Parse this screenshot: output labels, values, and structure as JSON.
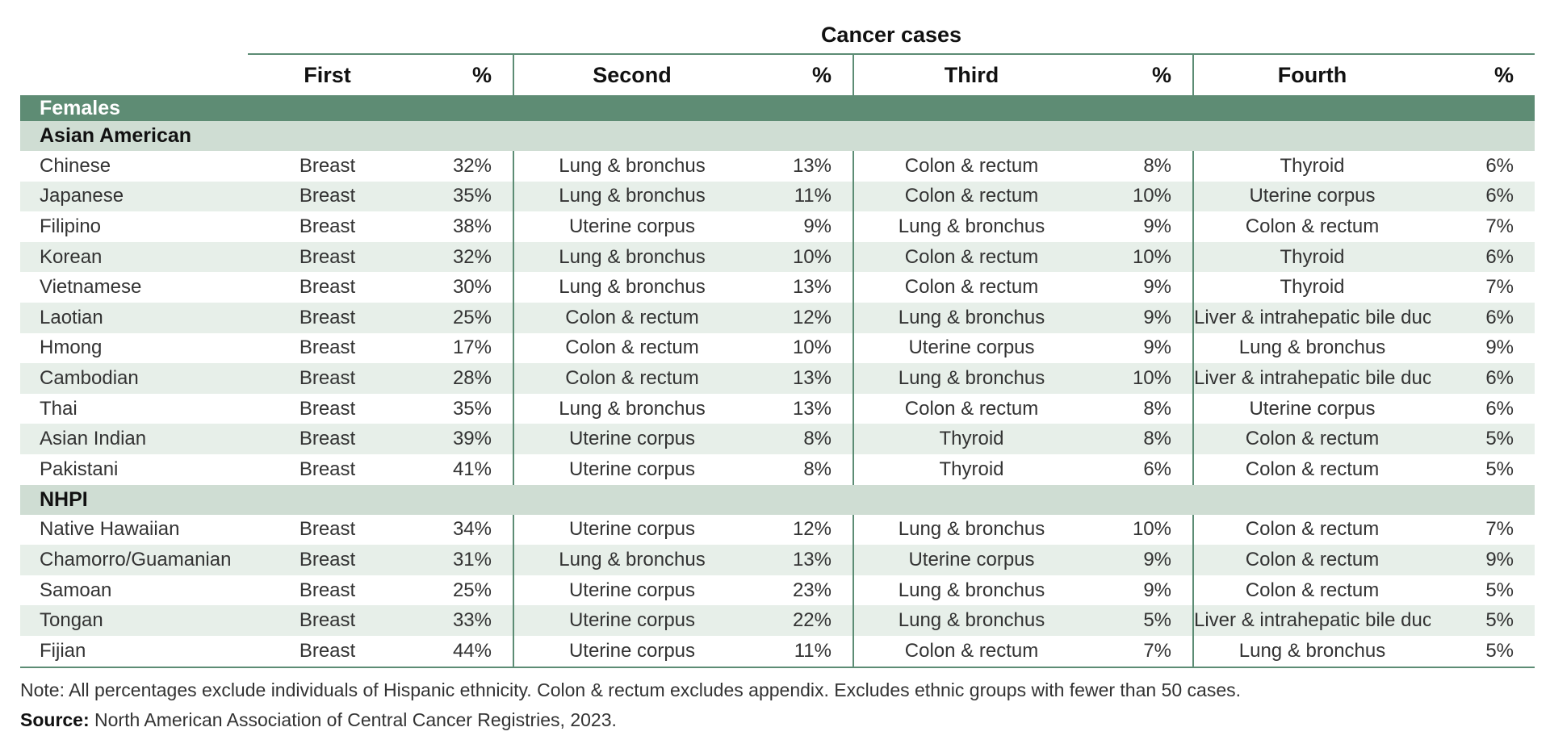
{
  "super_header": "Cancer cases",
  "columns": [
    "First",
    "%",
    "Second",
    "%",
    "Third",
    "%",
    "Fourth",
    "%"
  ],
  "section": "Females",
  "groups": [
    {
      "name": "Asian American",
      "rows": [
        {
          "ethnicity": "Chinese",
          "c1": "Breast",
          "p1": "32%",
          "c2": "Lung & bronchus",
          "p2": "13%",
          "c3": "Colon & rectum",
          "p3": "8%",
          "c4": "Thyroid",
          "p4": "6%"
        },
        {
          "ethnicity": "Japanese",
          "c1": "Breast",
          "p1": "35%",
          "c2": "Lung & bronchus",
          "p2": "11%",
          "c3": "Colon & rectum",
          "p3": "10%",
          "c4": "Uterine corpus",
          "p4": "6%"
        },
        {
          "ethnicity": "Filipino",
          "c1": "Breast",
          "p1": "38%",
          "c2": "Uterine corpus",
          "p2": "9%",
          "c3": "Lung & bronchus",
          "p3": "9%",
          "c4": "Colon & rectum",
          "p4": "7%"
        },
        {
          "ethnicity": "Korean",
          "c1": "Breast",
          "p1": "32%",
          "c2": "Lung & bronchus",
          "p2": "10%",
          "c3": "Colon & rectum",
          "p3": "10%",
          "c4": "Thyroid",
          "p4": "6%"
        },
        {
          "ethnicity": "Vietnamese",
          "c1": "Breast",
          "p1": "30%",
          "c2": "Lung & bronchus",
          "p2": "13%",
          "c3": "Colon & rectum",
          "p3": "9%",
          "c4": "Thyroid",
          "p4": "7%"
        },
        {
          "ethnicity": "Laotian",
          "c1": "Breast",
          "p1": "25%",
          "c2": "Colon & rectum",
          "p2": "12%",
          "c3": "Lung & bronchus",
          "p3": "9%",
          "c4": "Liver & intrahepatic bile duct",
          "p4": "6%"
        },
        {
          "ethnicity": "Hmong",
          "c1": "Breast",
          "p1": "17%",
          "c2": "Colon & rectum",
          "p2": "10%",
          "c3": "Uterine corpus",
          "p3": "9%",
          "c4": "Lung & bronchus",
          "p4": "9%"
        },
        {
          "ethnicity": "Cambodian",
          "c1": "Breast",
          "p1": "28%",
          "c2": "Colon & rectum",
          "p2": "13%",
          "c3": "Lung & bronchus",
          "p3": "10%",
          "c4": "Liver & intrahepatic bile duct",
          "p4": "6%"
        },
        {
          "ethnicity": "Thai",
          "c1": "Breast",
          "p1": "35%",
          "c2": "Lung & bronchus",
          "p2": "13%",
          "c3": "Colon & rectum",
          "p3": "8%",
          "c4": "Uterine corpus",
          "p4": "6%"
        },
        {
          "ethnicity": "Asian Indian",
          "c1": "Breast",
          "p1": "39%",
          "c2": "Uterine corpus",
          "p2": "8%",
          "c3": "Thyroid",
          "p3": "8%",
          "c4": "Colon & rectum",
          "p4": "5%"
        },
        {
          "ethnicity": "Pakistani",
          "c1": "Breast",
          "p1": "41%",
          "c2": "Uterine corpus",
          "p2": "8%",
          "c3": "Thyroid",
          "p3": "6%",
          "c4": "Colon & rectum",
          "p4": "5%"
        }
      ]
    },
    {
      "name": "NHPI",
      "rows": [
        {
          "ethnicity": "Native Hawaiian",
          "c1": "Breast",
          "p1": "34%",
          "c2": "Uterine corpus",
          "p2": "12%",
          "c3": "Lung & bronchus",
          "p3": "10%",
          "c4": "Colon & rectum",
          "p4": "7%"
        },
        {
          "ethnicity": "Chamorro/Guamanian",
          "c1": "Breast",
          "p1": "31%",
          "c2": "Lung & bronchus",
          "p2": "13%",
          "c3": "Uterine corpus",
          "p3": "9%",
          "c4": "Colon & rectum",
          "p4": "9%"
        },
        {
          "ethnicity": "Samoan",
          "c1": "Breast",
          "p1": "25%",
          "c2": "Uterine corpus",
          "p2": "23%",
          "c3": "Lung & bronchus",
          "p3": "9%",
          "c4": "Colon & rectum",
          "p4": "5%"
        },
        {
          "ethnicity": "Tongan",
          "c1": "Breast",
          "p1": "33%",
          "c2": "Uterine corpus",
          "p2": "22%",
          "c3": "Lung & bronchus",
          "p3": "5%",
          "c4": "Liver & intrahepatic bile duct",
          "p4": "5%"
        },
        {
          "ethnicity": "Fijian",
          "c1": "Breast",
          "p1": "44%",
          "c2": "Uterine corpus",
          "p2": "11%",
          "c3": "Colon & rectum",
          "p3": "7%",
          "c4": "Lung & bronchus",
          "p4": "5%"
        }
      ]
    }
  ],
  "note": "Note: All percentages exclude individuals of Hispanic ethnicity. Colon & rectum excludes appendix. Excludes ethnic groups with fewer than 50 cases.",
  "source_label": "Source:",
  "source_text": " North American Association of Central Cancer Registries, 2023."
}
